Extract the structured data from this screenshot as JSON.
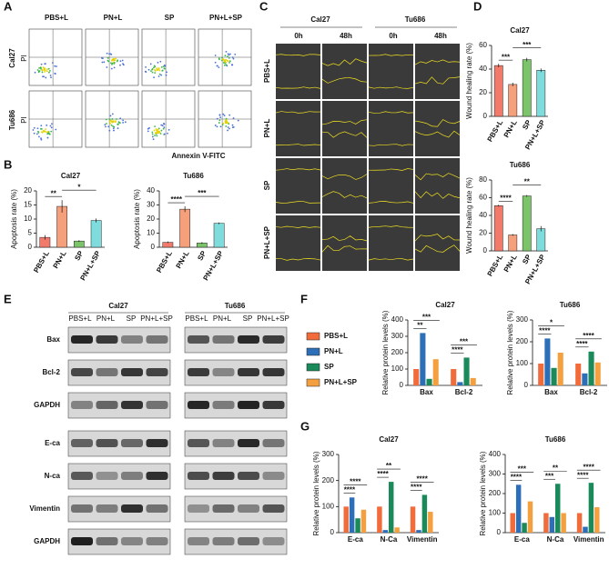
{
  "panel_labels": [
    "A",
    "B",
    "C",
    "D",
    "E",
    "F",
    "G"
  ],
  "flow": {
    "columns": [
      "PBS+L",
      "PN+L",
      "SP",
      "PN+L+SP"
    ],
    "rows": [
      "Cal27",
      "Tu686"
    ],
    "y_label": "PI",
    "x_label": "Annexin V-FITC"
  },
  "wound": {
    "cell_lines": [
      "Cal27",
      "Tu686"
    ],
    "times": [
      "0h",
      "48h"
    ],
    "rows": [
      "PBS+L",
      "PN+L",
      "SP",
      "PN+L+SP"
    ]
  },
  "blot": {
    "cell_lines": [
      "Cal27",
      "Tu686"
    ],
    "lanes": [
      "PBS+L",
      "PN+L",
      "SP",
      "PN+L+SP"
    ],
    "proteins": [
      "Bax",
      "Bcl-2",
      "GAPDH",
      "E-ca",
      "N-ca",
      "Vimentin",
      "GAPDH"
    ]
  },
  "chart_data": [
    {
      "type": "bar",
      "title": "Cal27",
      "y_label": "Apoptosis rate (%)",
      "categories": [
        "PBS+L",
        "PN+L",
        "SP",
        "PN+L+SP"
      ],
      "values": [
        3.5,
        14.5,
        2.2,
        9.5
      ],
      "errors": [
        0.8,
        2.2,
        0.3,
        0.7
      ],
      "colors": [
        "#f27a6a",
        "#f5a07a",
        "#7cc46a",
        "#7fdcdc"
      ],
      "ylim": [
        0,
        20
      ],
      "yticks": [
        0,
        5,
        10,
        15,
        20
      ],
      "annotations": [
        "**",
        "*"
      ]
    },
    {
      "type": "bar",
      "title": "Tu686",
      "y_label": "Apoptosis rate (%)",
      "categories": [
        "PBS+L",
        "PN+L",
        "SP",
        "PN+L+SP"
      ],
      "values": [
        3.5,
        27,
        3,
        17
      ],
      "errors": [
        0.6,
        2,
        0.6,
        0.6
      ],
      "colors": [
        "#f27a6a",
        "#f5a07a",
        "#7cc46a",
        "#7fdcdc"
      ],
      "ylim": [
        0,
        40
      ],
      "yticks": [
        0,
        10,
        20,
        30,
        40
      ],
      "annotations": [
        "****",
        "***"
      ]
    },
    {
      "type": "bar",
      "title": "Cal27",
      "y_label": "Wound healing rate (%)",
      "categories": [
        "PBS+L",
        "PN+L",
        "SP",
        "PN+L+SP"
      ],
      "values": [
        43,
        27,
        48,
        39
      ],
      "errors": [
        1.5,
        1.5,
        1.5,
        1.5
      ],
      "colors": [
        "#f27a6a",
        "#f5a07a",
        "#7cc46a",
        "#7fdcdc"
      ],
      "ylim": [
        0,
        60
      ],
      "yticks": [
        0,
        20,
        40,
        60
      ],
      "annotations": [
        "***",
        "***"
      ]
    },
    {
      "type": "bar",
      "title": "Tu686",
      "y_label": "Wound healing rate (%)",
      "categories": [
        "PBS+L",
        "PN+L",
        "SP",
        "PN+L+SP"
      ],
      "values": [
        51,
        18,
        62,
        25
      ],
      "errors": [
        1,
        1,
        1,
        3
      ],
      "colors": [
        "#f27a6a",
        "#f5a07a",
        "#7cc46a",
        "#7fdcdc"
      ],
      "ylim": [
        0,
        80
      ],
      "yticks": [
        0,
        20,
        40,
        60,
        80
      ],
      "annotations": [
        "****",
        "**"
      ]
    },
    {
      "type": "grouped-bar",
      "title": "Cal27",
      "y_label": "Relative protein levels (%)",
      "categories": [
        "Bax",
        "Bcl-2"
      ],
      "series": [
        {
          "name": "PBS+L",
          "color": "#f26b3a",
          "values": [
            100,
            100
          ]
        },
        {
          "name": "PN+L",
          "color": "#2c6fb8",
          "values": [
            320,
            20
          ]
        },
        {
          "name": "SP",
          "color": "#1a8a5a",
          "values": [
            40,
            170
          ]
        },
        {
          "name": "PN+L+SP",
          "color": "#f4a040",
          "values": [
            160,
            45
          ]
        }
      ],
      "ylim": [
        0,
        400
      ],
      "yticks": [
        0,
        100,
        200,
        300,
        400
      ],
      "annotations": [
        "**",
        "***",
        "****",
        "***"
      ]
    },
    {
      "type": "grouped-bar",
      "title": "Tu686",
      "y_label": "Relative protein levels (%)",
      "categories": [
        "Bax",
        "Bcl-2"
      ],
      "series": [
        {
          "values": [
            100,
            100
          ]
        },
        {
          "values": [
            215,
            55
          ]
        },
        {
          "values": [
            80,
            155
          ]
        },
        {
          "values": [
            150,
            105
          ]
        }
      ],
      "ylim": [
        0,
        300
      ],
      "yticks": [
        0,
        100,
        200,
        300
      ],
      "annotations": [
        "****",
        "*",
        "****",
        "****"
      ]
    },
    {
      "type": "grouped-bar",
      "title": "Cal27",
      "y_label": "Relative protein levels (%)",
      "categories": [
        "E-ca",
        "N-Ca",
        "Vimentin"
      ],
      "series": [
        {
          "values": [
            100,
            100,
            100
          ]
        },
        {
          "values": [
            135,
            10,
            10
          ]
        },
        {
          "values": [
            55,
            195,
            145
          ]
        },
        {
          "values": [
            88,
            20,
            80
          ]
        }
      ],
      "ylim": [
        0,
        300
      ],
      "yticks": [
        0,
        100,
        200,
        300
      ],
      "annotations": [
        "****",
        "****",
        "****",
        "**",
        "****",
        "****"
      ]
    },
    {
      "type": "grouped-bar",
      "title": "Tu686",
      "y_label": "Relative protein levels (%)",
      "categories": [
        "E-ca",
        "N-Ca",
        "Vimentin"
      ],
      "series": [
        {
          "values": [
            100,
            100,
            100
          ]
        },
        {
          "values": [
            245,
            80,
            30
          ]
        },
        {
          "values": [
            50,
            250,
            255
          ]
        },
        {
          "values": [
            160,
            100,
            130
          ]
        }
      ],
      "ylim": [
        0,
        400
      ],
      "yticks": [
        0,
        100,
        200,
        300,
        400
      ],
      "annotations": [
        "****",
        "***",
        "***",
        "**",
        "****",
        "****"
      ]
    }
  ]
}
